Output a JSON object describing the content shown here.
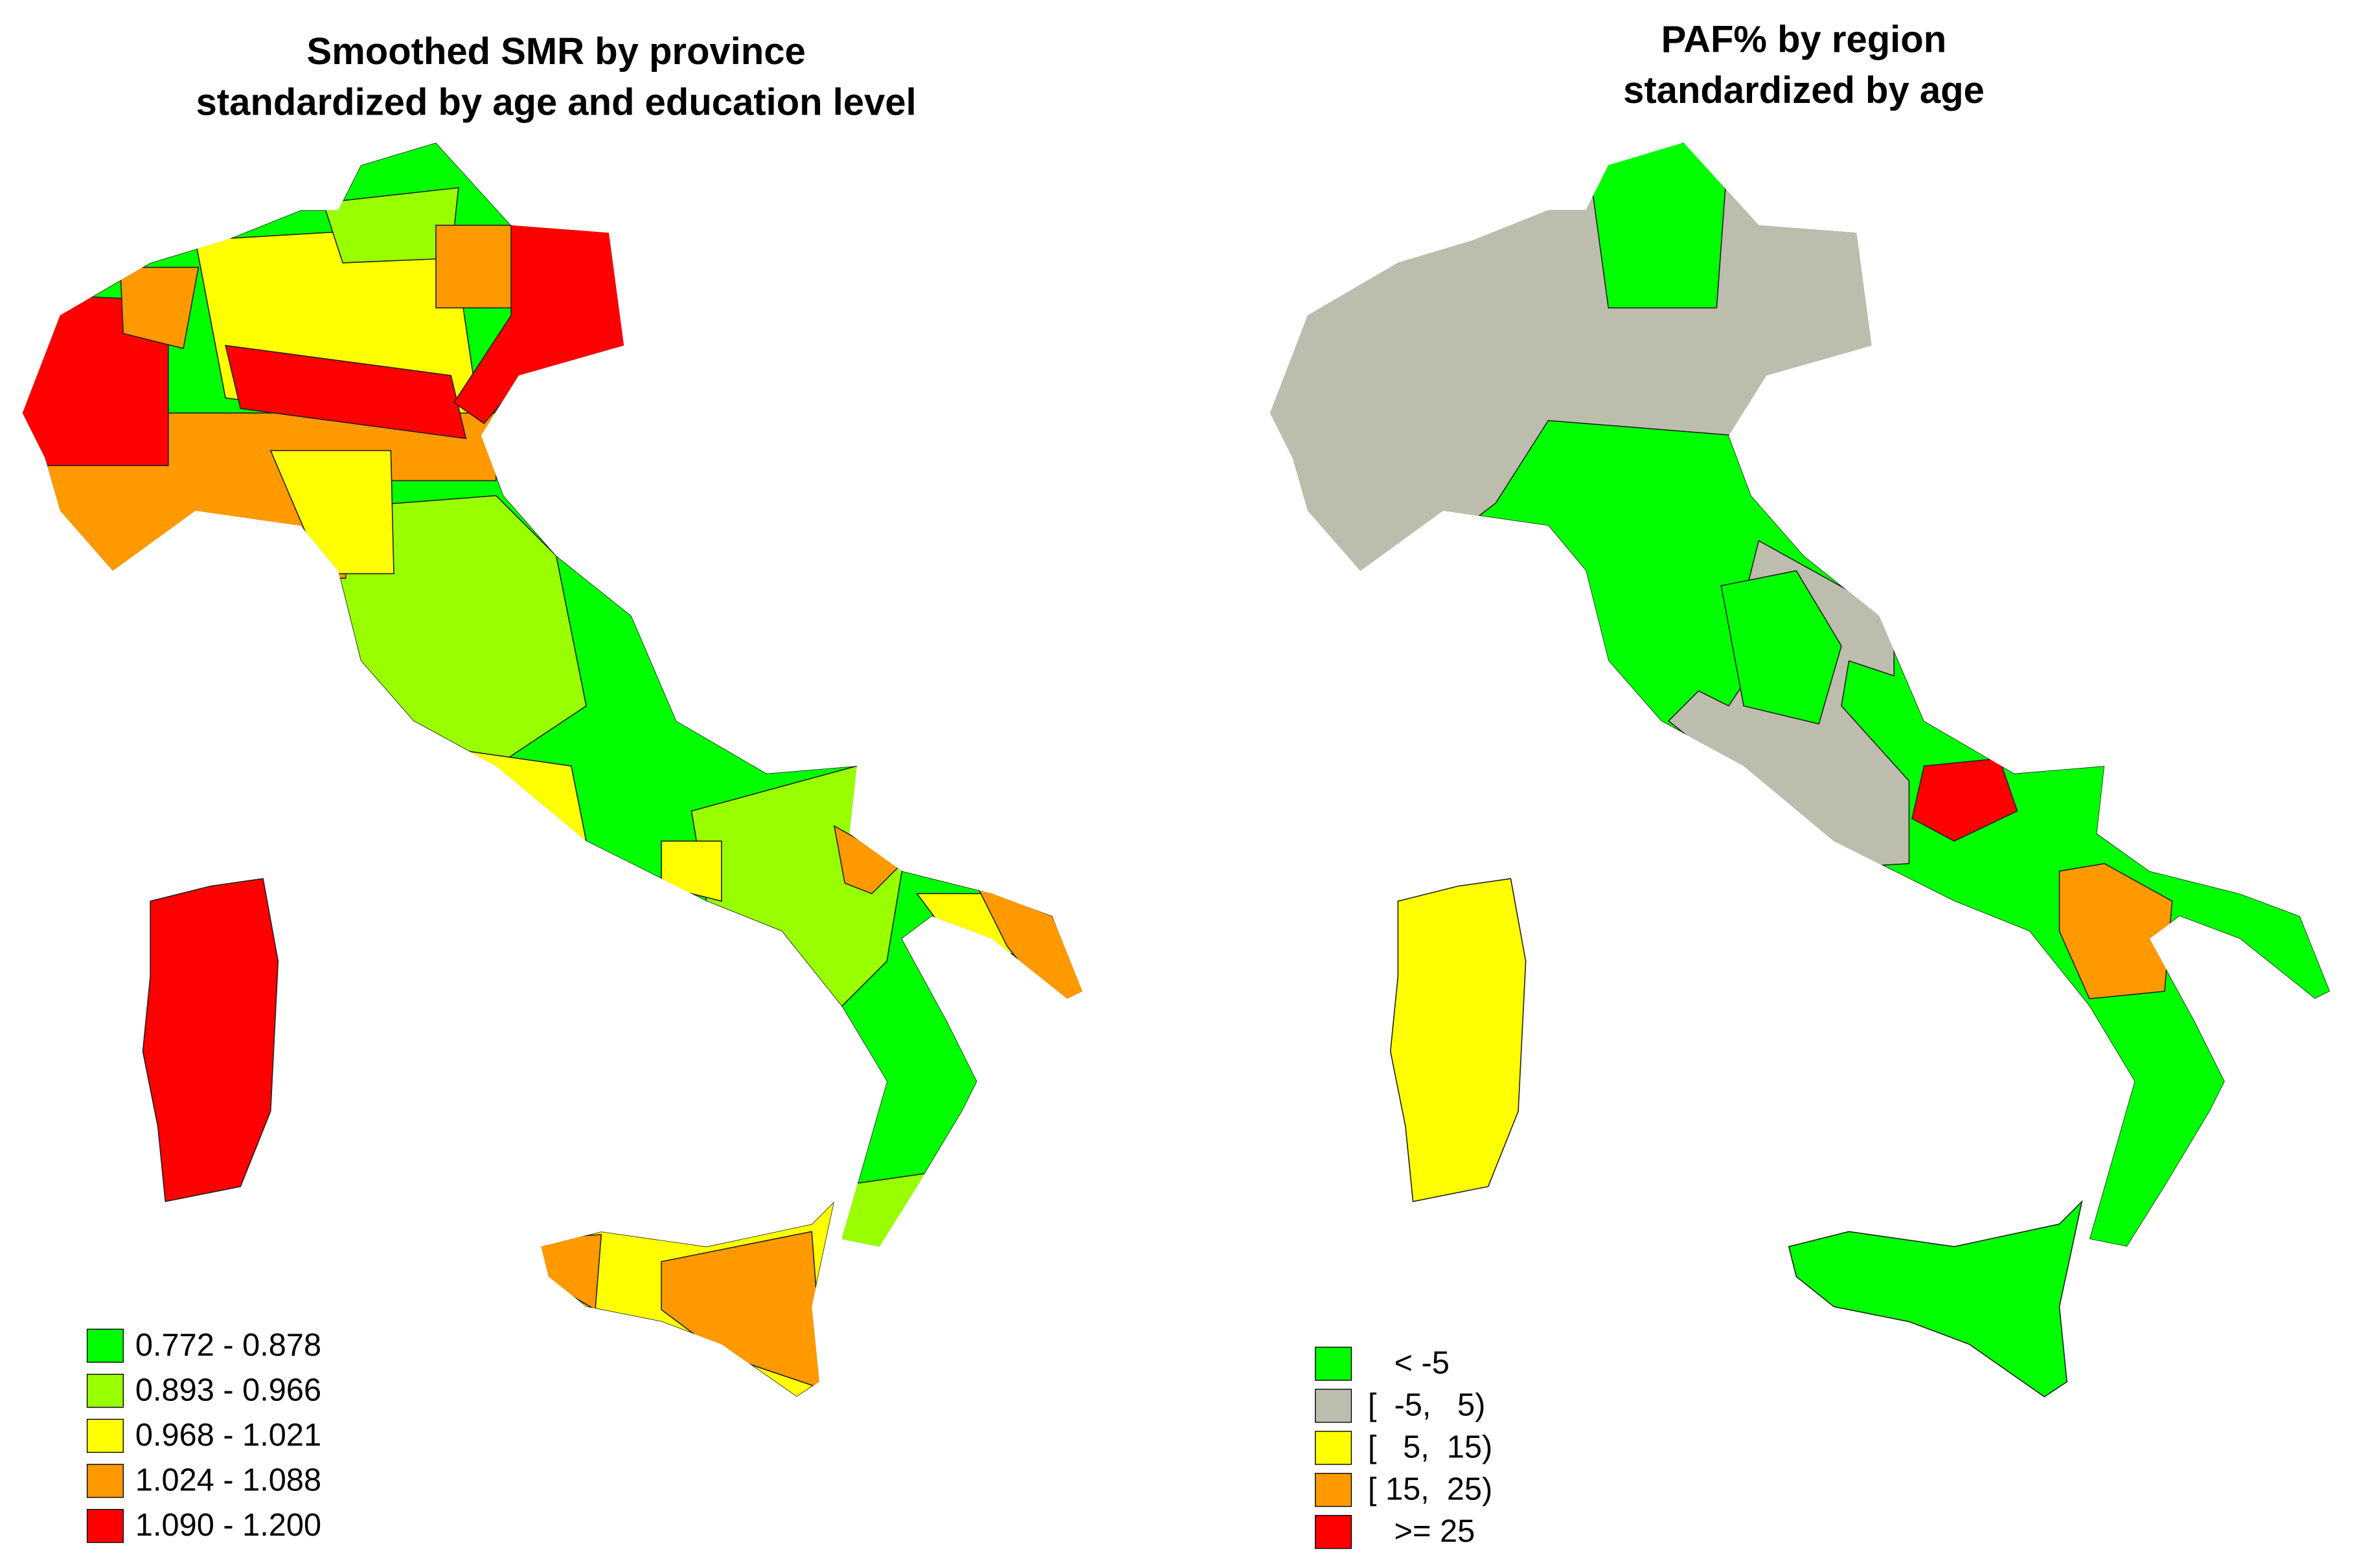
{
  "maps": [
    {
      "title": [
        "Smoothed SMR by province",
        "standardized by age and education level"
      ],
      "legend": [
        {
          "label": "0.772 - 0.878",
          "color": "#00ff00"
        },
        {
          "label": "0.893 - 0.966",
          "color": "#99ff00"
        },
        {
          "label": "0.968 - 1.021",
          "color": "#ffff00"
        },
        {
          "label": "1.024 - 1.088",
          "color": "#ff9900"
        },
        {
          "label": "1.090 - 1.200",
          "color": "#ff0000"
        }
      ]
    },
    {
      "title": [
        "PAF% by region",
        "standardized by age"
      ],
      "legend": [
        {
          "label": "   < -5",
          "color": "#00ff00"
        },
        {
          "label": "[  -5,   5)",
          "color": "#bdbdad"
        },
        {
          "label": "[   5,  15)",
          "color": "#ffff00"
        },
        {
          "label": "[ 15,  25)",
          "color": "#ff9900"
        },
        {
          "label": "   >= 25",
          "color": "#ff0000"
        }
      ]
    }
  ]
}
